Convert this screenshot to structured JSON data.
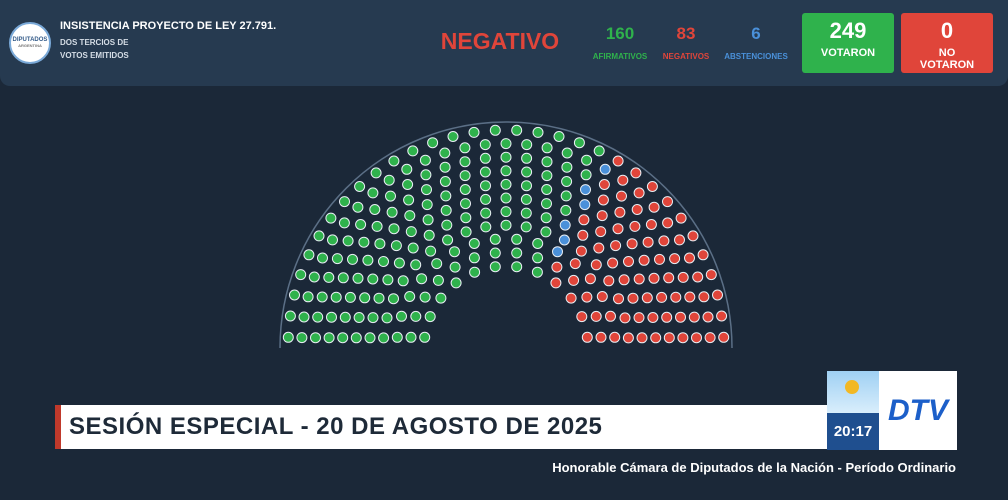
{
  "header": {
    "logo": "DIPUTADOS",
    "logo_sub": "ARGENTINA",
    "title": "INSISTENCIA PROYECTO DE LEY 27.791.",
    "subtitle_lines": [
      "DOS TERCIOS DE",
      "VOTOS EMITIDOS"
    ]
  },
  "result": "NEGATIVO",
  "counts": [
    {
      "value": 160,
      "label": "AFIRMATIVOS",
      "color": "#2fb24c"
    },
    {
      "value": 83,
      "label": "NEGATIVOS",
      "color": "#e0453a"
    },
    {
      "value": 6,
      "label": "ABSTENCIONES",
      "color": "#4a90d9"
    }
  ],
  "totals": [
    {
      "value": 249,
      "label": "VOTARON",
      "color": "#2fb24c"
    },
    {
      "value": 0,
      "label": "NO VOTARON",
      "color": "#e0453a"
    }
  ],
  "banner": {
    "title": "SESIÓN ESPECIAL - 20 DE AGOSTO DE 2025",
    "clock": "20:17",
    "channel": "DTV",
    "footer": "Honorable Cámara de Diputados de la Nación - Período Ordinario"
  }
}
